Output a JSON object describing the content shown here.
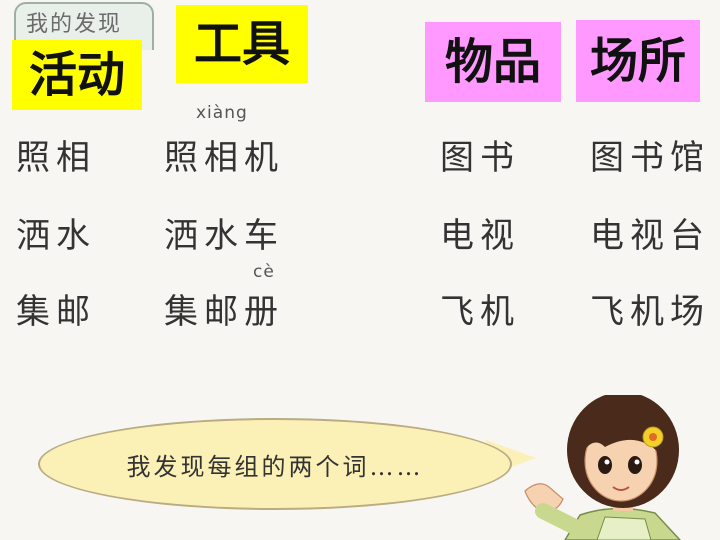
{
  "header": {
    "tab_text": "我的发现"
  },
  "labels": {
    "activity": "活动",
    "tool": "工具",
    "item": "物品",
    "place": "场所"
  },
  "pinyin": {
    "xiang": "xiàng",
    "ce": "cè"
  },
  "rows": [
    {
      "activity": "照相",
      "tool": "照相机",
      "item": "图书",
      "place": "图书馆"
    },
    {
      "activity": "洒水",
      "tool": "洒水车",
      "item": "电视",
      "place": "电视台"
    },
    {
      "activity": "集邮",
      "tool": "集邮册",
      "item": "飞机",
      "place": "飞机场"
    }
  ],
  "bubble": {
    "text": "我发现每组的两个词……"
  },
  "colors": {
    "yellow_label": "#ffff00",
    "pink_label": "#ff99ff",
    "bubble": "#fbf0b6"
  }
}
